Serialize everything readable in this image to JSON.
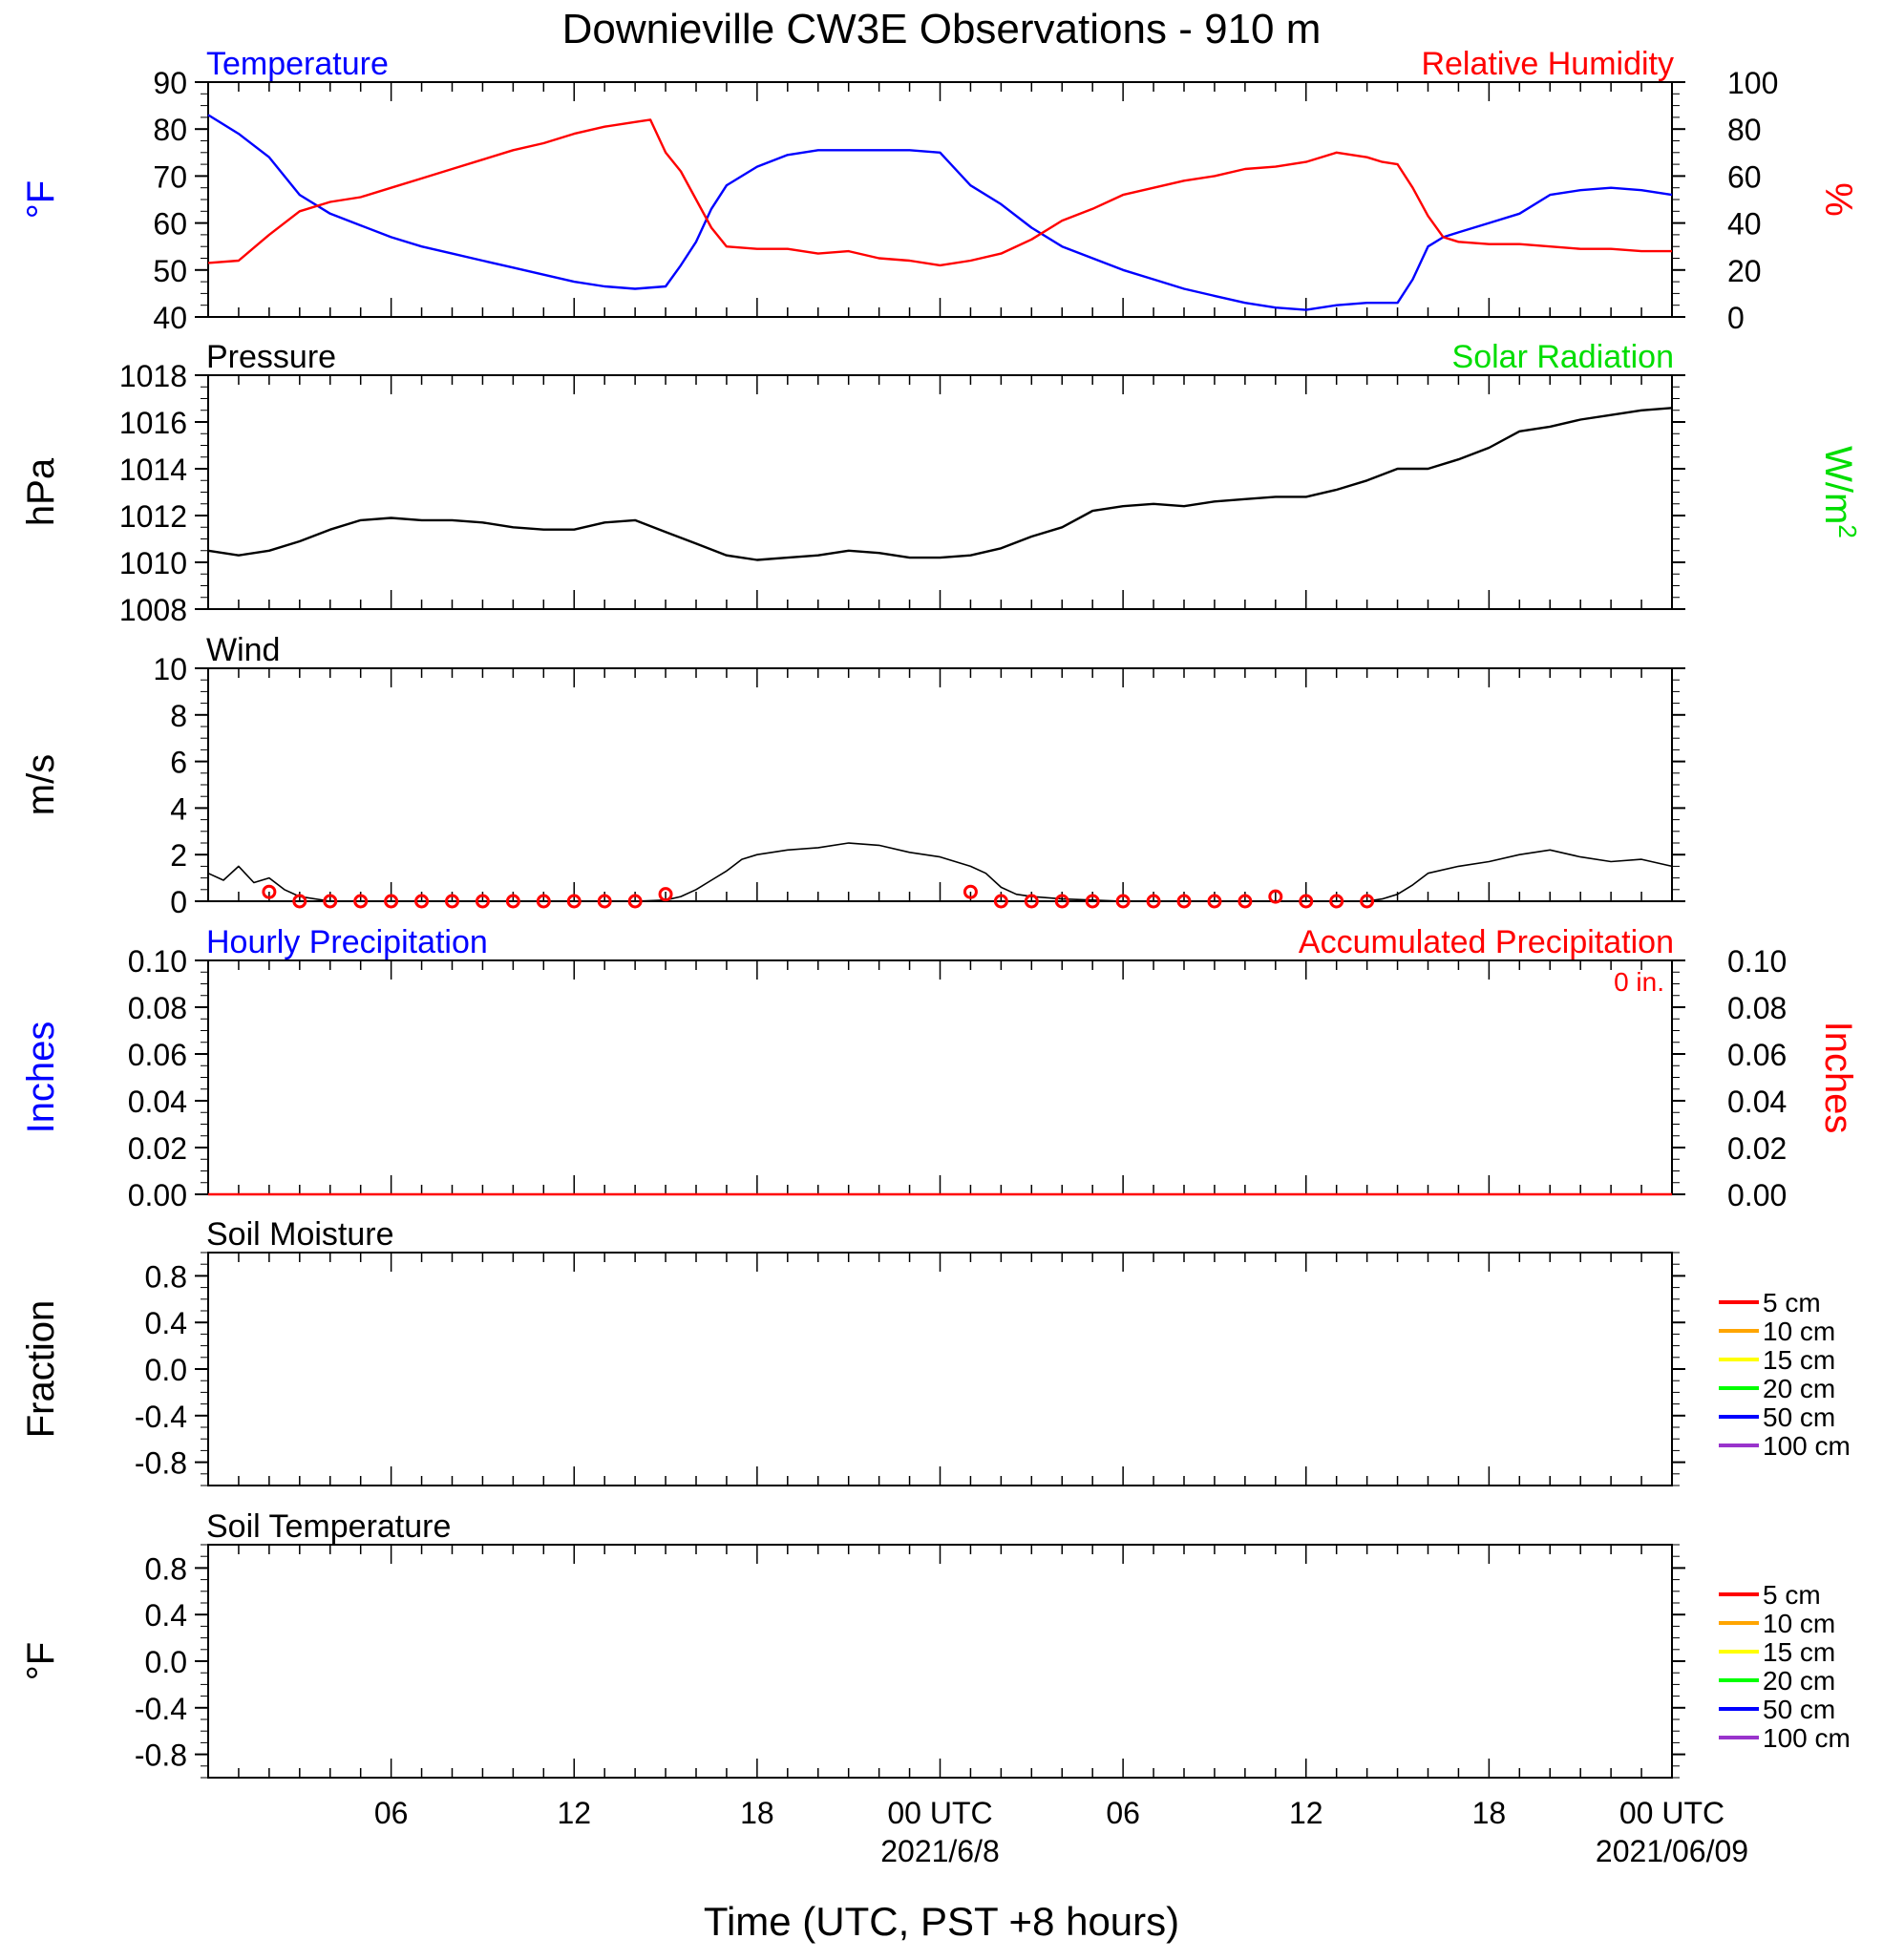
{
  "title": "Downieville CW3E Observations - 910 m",
  "x_axis": {
    "label": "Time (UTC, PST +8 hours)",
    "tick_hours": [
      6,
      12,
      18,
      24,
      30,
      36,
      42,
      48
    ],
    "tick_labels": [
      "06",
      "12",
      "18",
      "00 UTC",
      "06",
      "12",
      "18",
      "00 UTC"
    ],
    "date_labels": [
      "2021/6/8",
      "2021/06/09"
    ],
    "date_label_hours": [
      24,
      48
    ]
  },
  "colors": {
    "temperature": "#0000ff",
    "humidity": "#ff0000",
    "pressure": "#000000",
    "solar": "#00dd00",
    "wind": "#000000",
    "wind_marker": "#ff0000",
    "precip_hourly": "#0000ff",
    "precip_accum": "#ff0000"
  },
  "chart_data": [
    {
      "type": "line",
      "panel": "temperature_humidity",
      "left_title": "Temperature",
      "right_title": "Relative Humidity",
      "left_ylabel": "°F",
      "right_ylabel": "%",
      "x_range_hours": [
        0,
        48
      ],
      "left_ylim": [
        40,
        90
      ],
      "right_ylim": [
        0,
        100
      ],
      "left_yticks": [
        40,
        50,
        60,
        70,
        80,
        90
      ],
      "right_yticks": [
        0,
        20,
        40,
        60,
        80,
        100
      ],
      "series": [
        {
          "name": "Temperature",
          "axis": "left",
          "x": [
            0,
            1,
            2,
            3,
            4,
            5,
            6,
            7,
            8,
            9,
            10,
            11,
            12,
            13,
            14,
            15,
            15.5,
            16,
            16.5,
            17,
            17.5,
            18,
            19,
            20,
            21,
            22,
            23,
            24,
            25,
            26,
            27,
            28,
            29,
            30,
            31,
            32,
            33,
            34,
            35,
            36,
            37,
            38,
            39,
            39.5,
            40,
            40.5,
            41,
            42,
            43,
            44,
            45,
            46,
            47,
            48
          ],
          "y": [
            83,
            79,
            74,
            66,
            62,
            59.5,
            57,
            55,
            53.5,
            52,
            50.5,
            49,
            47.5,
            46.5,
            46,
            46.5,
            51,
            56,
            63,
            68,
            70,
            72,
            74.5,
            75.5,
            75.5,
            75.5,
            75.5,
            75,
            68,
            64,
            59,
            55,
            52.5,
            50,
            48,
            46,
            44.5,
            43,
            42,
            41.5,
            42.5,
            43,
            43,
            48,
            55,
            57,
            58,
            60,
            62,
            66,
            67,
            67.5,
            67,
            66
          ]
        },
        {
          "name": "Relative Humidity",
          "axis": "right",
          "x": [
            0,
            1,
            2,
            3,
            4,
            5,
            6,
            7,
            8,
            9,
            10,
            11,
            12,
            13,
            14,
            14.5,
            15,
            15.5,
            16,
            16.5,
            17,
            18,
            19,
            20,
            21,
            22,
            23,
            24,
            25,
            26,
            27,
            28,
            29,
            30,
            31,
            32,
            33,
            34,
            35,
            36,
            37,
            38,
            38.5,
            39,
            39.5,
            40,
            40.5,
            41,
            42,
            43,
            44,
            45,
            46,
            47,
            48
          ],
          "y": [
            23,
            24,
            35,
            45,
            49,
            51,
            55,
            59,
            63,
            67,
            71,
            74,
            78,
            81,
            83,
            84,
            70,
            62,
            50,
            38,
            30,
            29,
            29,
            27,
            28,
            25,
            24,
            22,
            24,
            27,
            33,
            41,
            46,
            52,
            55,
            58,
            60,
            63,
            64,
            66,
            70,
            68,
            66,
            65,
            55,
            43,
            34,
            32,
            31,
            31,
            30,
            29,
            29,
            28,
            28
          ]
        }
      ]
    },
    {
      "type": "line",
      "panel": "pressure",
      "left_title": "Pressure",
      "right_title": "Solar Radiation",
      "left_ylabel": "hPa",
      "right_ylabel": "W/m",
      "right_ylabel_sup": "2",
      "x_range_hours": [
        0,
        48
      ],
      "ylim": [
        1008,
        1018
      ],
      "yticks": [
        1008,
        1010,
        1012,
        1014,
        1016,
        1018
      ],
      "series": [
        {
          "name": "Pressure",
          "x": [
            0,
            1,
            2,
            3,
            4,
            5,
            6,
            7,
            8,
            9,
            10,
            11,
            12,
            13,
            14,
            15,
            16,
            17,
            18,
            19,
            20,
            21,
            22,
            23,
            24,
            25,
            26,
            27,
            28,
            29,
            30,
            31,
            32,
            33,
            34,
            35,
            36,
            37,
            38,
            39,
            40,
            41,
            42,
            43,
            44,
            45,
            46,
            47,
            48
          ],
          "y": [
            1010.5,
            1010.3,
            1010.5,
            1010.9,
            1011.4,
            1011.8,
            1011.9,
            1011.8,
            1011.8,
            1011.7,
            1011.5,
            1011.4,
            1011.4,
            1011.7,
            1011.8,
            1011.3,
            1010.8,
            1010.3,
            1010.1,
            1010.2,
            1010.3,
            1010.5,
            1010.4,
            1010.2,
            1010.2,
            1010.3,
            1010.6,
            1011.1,
            1011.5,
            1012.2,
            1012.4,
            1012.5,
            1012.4,
            1012.6,
            1012.7,
            1012.8,
            1012.8,
            1013.1,
            1013.5,
            1014.0,
            1014.0,
            1014.4,
            1014.9,
            1015.6,
            1015.8,
            1016.1,
            1016.3,
            1016.5,
            1016.6
          ]
        }
      ]
    },
    {
      "type": "line",
      "panel": "wind",
      "left_title": "Wind",
      "left_ylabel": "m/s",
      "x_range_hours": [
        0,
        48
      ],
      "ylim": [
        0,
        10
      ],
      "yticks": [
        0,
        2,
        4,
        6,
        8,
        10
      ],
      "series": [
        {
          "name": "Wind",
          "x": [
            0,
            0.5,
            1,
            1.5,
            2,
            2.5,
            3,
            4,
            5,
            6,
            7,
            8,
            9,
            10,
            11,
            12,
            13,
            14,
            15,
            15.5,
            16,
            16.5,
            17,
            17.5,
            18,
            19,
            20,
            21,
            22,
            23,
            24,
            25,
            25.5,
            26,
            26.5,
            27,
            28,
            29,
            30,
            31,
            32,
            33,
            34,
            35,
            36,
            37,
            38,
            38.5,
            39,
            39.5,
            40,
            41,
            42,
            43,
            44,
            45,
            46,
            47,
            48
          ],
          "y": [
            1.2,
            0.9,
            1.5,
            0.8,
            1.0,
            0.5,
            0.2,
            0,
            0,
            0,
            0,
            0,
            0,
            0,
            0,
            0,
            0,
            0,
            0.05,
            0.2,
            0.5,
            0.9,
            1.3,
            1.8,
            2.0,
            2.2,
            2.3,
            2.5,
            2.4,
            2.1,
            1.9,
            1.5,
            1.2,
            0.6,
            0.3,
            0.2,
            0.1,
            0.05,
            0,
            0,
            0,
            0,
            0,
            0,
            0,
            0,
            0,
            0.1,
            0.3,
            0.7,
            1.2,
            1.5,
            1.7,
            2.0,
            2.2,
            1.9,
            1.7,
            1.8,
            1.5
          ]
        }
      ],
      "hourly_markers_hours": [
        2,
        3,
        4,
        5,
        6,
        7,
        8,
        9,
        10,
        11,
        12,
        13,
        14,
        15,
        25,
        26,
        27,
        28,
        29,
        30,
        31,
        32,
        33,
        34,
        35,
        36,
        37,
        38
      ],
      "hourly_markers_values": [
        0.4,
        0,
        0,
        0,
        0,
        0,
        0,
        0,
        0,
        0,
        0,
        0,
        0,
        0.3,
        0.4,
        0,
        0,
        0,
        0,
        0,
        0,
        0,
        0,
        0,
        0.2,
        0,
        0,
        0
      ]
    },
    {
      "type": "line",
      "panel": "precipitation",
      "left_title": "Hourly Precipitation",
      "right_title": "Accumulated Precipitation",
      "annotation": "0 in.",
      "left_ylabel": "Inches",
      "right_ylabel": "Inches",
      "x_range_hours": [
        0,
        48
      ],
      "ylim": [
        0,
        0.1
      ],
      "yticks": [
        0.0,
        0.02,
        0.04,
        0.06,
        0.08,
        0.1
      ],
      "ytick_labels": [
        "0.00",
        "0.02",
        "0.04",
        "0.06",
        "0.08",
        "0.10"
      ],
      "series": [
        {
          "name": "Accumulated Precipitation",
          "x": [
            0,
            48
          ],
          "y": [
            0,
            0
          ]
        }
      ]
    },
    {
      "type": "line",
      "panel": "soil_moisture",
      "left_title": "Soil Moisture",
      "left_ylabel": "Fraction",
      "x_range_hours": [
        0,
        48
      ],
      "ylim": [
        -1,
        1
      ],
      "yticks": [
        -0.8,
        -0.4,
        0.0,
        0.4,
        0.8
      ],
      "ytick_labels": [
        "-0.8",
        "-0.4",
        "0.0",
        "0.4",
        "0.8"
      ],
      "legend": [
        {
          "label": "5 cm",
          "color": "#ff0000"
        },
        {
          "label": "10 cm",
          "color": "#ffa500"
        },
        {
          "label": "15 cm",
          "color": "#ffff00"
        },
        {
          "label": "20 cm",
          "color": "#00ff00"
        },
        {
          "label": "50 cm",
          "color": "#0000ff"
        },
        {
          "label": "100 cm",
          "color": "#9933cc"
        }
      ],
      "series": []
    },
    {
      "type": "line",
      "panel": "soil_temperature",
      "left_title": "Soil Temperature",
      "left_ylabel": "°F",
      "x_range_hours": [
        0,
        48
      ],
      "ylim": [
        -1,
        1
      ],
      "yticks": [
        -0.8,
        -0.4,
        0.0,
        0.4,
        0.8
      ],
      "ytick_labels": [
        "-0.8",
        "-0.4",
        "0.0",
        "0.4",
        "0.8"
      ],
      "legend": [
        {
          "label": "5 cm",
          "color": "#ff0000"
        },
        {
          "label": "10 cm",
          "color": "#ffa500"
        },
        {
          "label": "15 cm",
          "color": "#ffff00"
        },
        {
          "label": "20 cm",
          "color": "#00ff00"
        },
        {
          "label": "50 cm",
          "color": "#0000ff"
        },
        {
          "label": "100 cm",
          "color": "#9933cc"
        }
      ],
      "series": []
    }
  ]
}
